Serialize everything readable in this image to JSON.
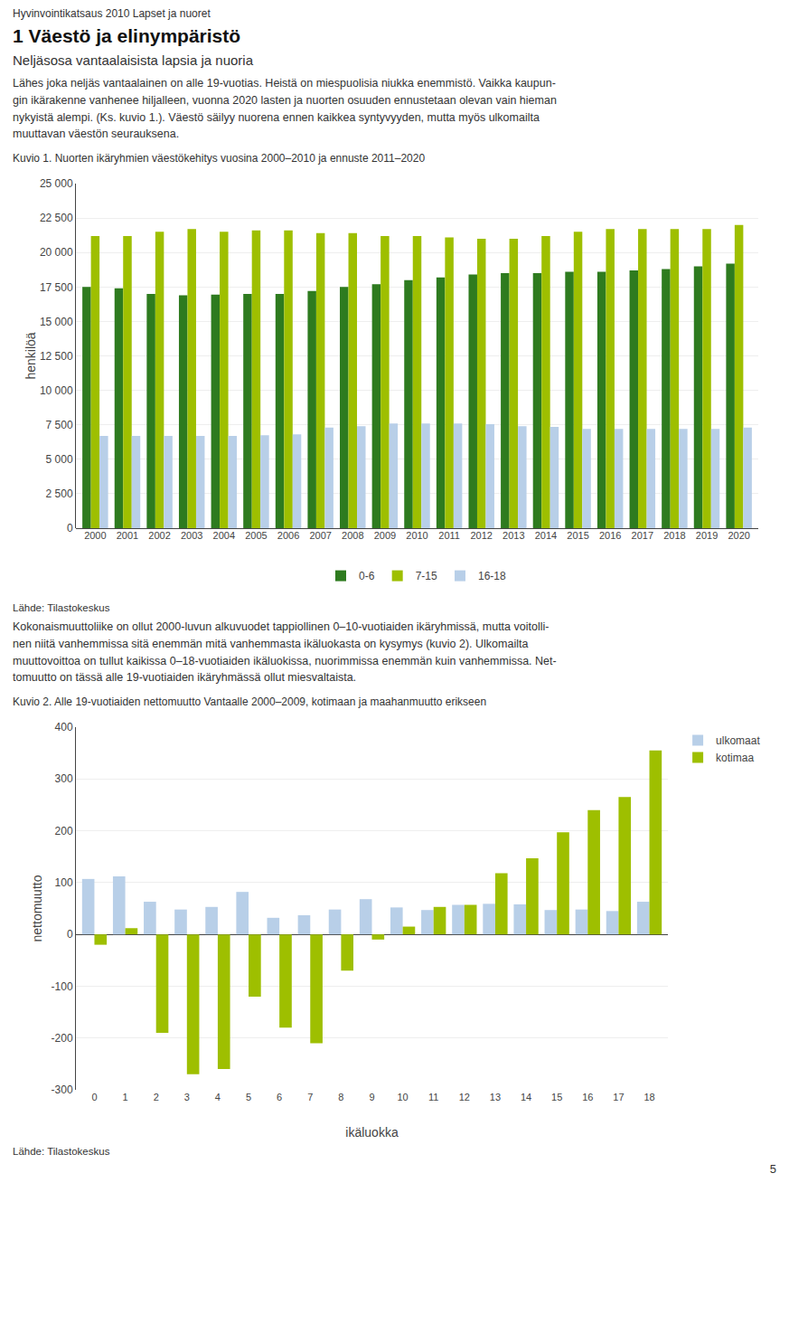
{
  "title": "1 Väestö ja elinympäristö",
  "subtitle": "Neljäsosa vantaalaisista lapsia ja nuoria",
  "annotations": [
    "Hyvinvointikatsaus 2010 Lapset ja nuoret",
    "Lähes joka neljäs vantaalainen on alle 19-vuotias. Heistä on miespuolisia niukka enemmistö. Vaikka kaupun-\ngin ikärakenne vanhenee hiljalleen, vuonna 2020 lasten ja nuorten osuuden ennustetaan olevan vain hieman\nnykyistä alempi. (Ks. kuvio 1.). Väestö säilyy nuorena ennen kaikkea syntyvyyden, mutta myös ulkomailta\nmuuttavan väestön seurauksena.",
    "Kokonaismuuttoliike on ollut 2000-luvun alkuvuodet tappiollinen 0–10-vuotiaiden ikäryhmissä, mutta voitolli-\nnen niitä vanhemmissa sitä enemmän mitä vanhemmasta ikäluokasta on kysymys (kuvio 2). Ulkomailta\nmuuttovoittoa on tullut kaikissa 0–18-vuotiaiden ikäluokissa, nuorimmissa enemmän kuin vanhemmissa. Net-\ntomuutto on tässä alle 19-vuotiaiden ikäryhmässä ollut miesvaltaista.",
    "5"
  ],
  "chart_data": [
    {
      "type": "bar",
      "title": "Kuvio 1. Nuorten ikäryhmien väestökehitys vuosina 2000–2010 ja ennuste 2011–2020",
      "ylabel": "henkilöä",
      "categories": [
        "2000",
        "2001",
        "2002",
        "2003",
        "2004",
        "2005",
        "2006",
        "2007",
        "2008",
        "2009",
        "2010",
        "2011",
        "2012",
        "2013",
        "2014",
        "2015",
        "2016",
        "2017",
        "2018",
        "2019",
        "2020"
      ],
      "series": [
        {
          "name": "0-6",
          "color": "#2e7b1f",
          "values": [
            17500,
            17400,
            17000,
            16900,
            16950,
            17000,
            17000,
            17200,
            17500,
            17700,
            18000,
            18200,
            18400,
            18500,
            18500,
            18600,
            18600,
            18700,
            18800,
            19000,
            19200
          ]
        },
        {
          "name": "7-15",
          "color": "#9ebf00",
          "values": [
            21200,
            21200,
            21500,
            21700,
            21500,
            21600,
            21600,
            21400,
            21400,
            21200,
            21200,
            21100,
            21000,
            21000,
            21200,
            21500,
            21700,
            21700,
            21700,
            21700,
            22000
          ]
        },
        {
          "name": "16-18",
          "color": "#b8cfe8",
          "values": [
            6700,
            6700,
            6700,
            6700,
            6700,
            6750,
            6800,
            7300,
            7400,
            7600,
            7600,
            7600,
            7550,
            7400,
            7350,
            7200,
            7200,
            7200,
            7200,
            7200,
            7300
          ]
        }
      ],
      "ylim": [
        0,
        25000
      ],
      "yticks": [
        0,
        {
          "value": 2500,
          "label": "2 500"
        },
        {
          "value": 5000,
          "label": "5 000"
        },
        {
          "value": 7500,
          "label": "7 500"
        },
        {
          "value": 10000,
          "label": "10 000"
        },
        {
          "value": 12500,
          "label": "12 500"
        },
        {
          "value": 15000,
          "label": "15 000"
        },
        {
          "value": 17500,
          "label": "17 500"
        },
        {
          "value": 20000,
          "label": "20 000"
        },
        {
          "value": 22500,
          "label": "22 500"
        },
        {
          "value": 25000,
          "label": "25 000"
        }
      ],
      "grid": true,
      "legend": "bottom",
      "annotations": [
        "Lähde: Tilastokeskus"
      ]
    },
    {
      "type": "bar",
      "title": "Kuvio 2. Alle 19-vuotiaiden nettomuutto Vantaalle 2000–2009, kotimaan ja maahanmuutto erikseen",
      "xlabel": "ikäluokka",
      "ylabel": "nettomuutto",
      "categories": [
        "0",
        "1",
        "2",
        "3",
        "4",
        "5",
        "6",
        "7",
        "8",
        "9",
        "10",
        "11",
        "12",
        "13",
        "14",
        "15",
        "16",
        "17",
        "18"
      ],
      "series": [
        {
          "name": "ulkomaat",
          "color": "#b8cfe8",
          "values": [
            107,
            112,
            63,
            48,
            53,
            82,
            32,
            37,
            48,
            68,
            52,
            47,
            57,
            59,
            58,
            47,
            48,
            45,
            63
          ]
        },
        {
          "name": "kotimaa",
          "color": "#9ebf00",
          "values": [
            -20,
            12,
            -190,
            -270,
            -260,
            -120,
            -180,
            -210,
            -70,
            -10,
            15,
            53,
            57,
            118,
            147,
            197,
            240,
            265,
            355
          ]
        }
      ],
      "ylim": [
        -300,
        400
      ],
      "yticks": [
        -300,
        -200,
        -100,
        0,
        100,
        200,
        300,
        400
      ],
      "grid": true,
      "legend": "right",
      "annotations": [
        "Lähde: Tilastokeskus"
      ]
    }
  ]
}
